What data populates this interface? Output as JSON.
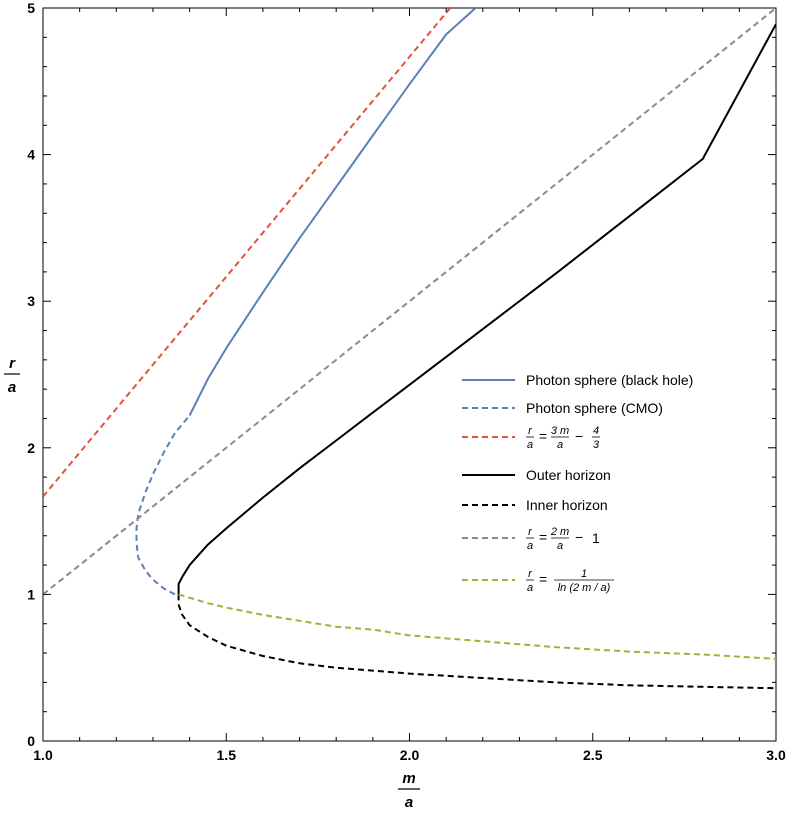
{
  "chart_data": {
    "type": "line",
    "title": "",
    "xlabel": {
      "num": "m",
      "den": "a"
    },
    "ylabel": {
      "num": "r",
      "den": "a"
    },
    "xlim": [
      1.0,
      3.0
    ],
    "ylim": [
      0,
      5
    ],
    "x_ticks": [
      {
        "value": 1.0,
        "label": "1.0"
      },
      {
        "value": 1.5,
        "label": "1.5"
      },
      {
        "value": 2.0,
        "label": "2.0"
      },
      {
        "value": 2.5,
        "label": "2.5"
      },
      {
        "value": 3.0,
        "label": "3.0"
      }
    ],
    "y_ticks": [
      {
        "value": 0,
        "label": "0"
      },
      {
        "value": 1,
        "label": "1"
      },
      {
        "value": 2,
        "label": "2"
      },
      {
        "value": 3,
        "label": "3"
      },
      {
        "value": 4,
        "label": "4"
      },
      {
        "value": 5,
        "label": "5"
      }
    ],
    "grid": false,
    "legend_position": "right",
    "series": [
      {
        "name": "Photon sphere (black hole)",
        "color": "#5b7fb8",
        "dashed": false,
        "points": [
          [
            1.4,
            2.22
          ],
          [
            1.45,
            2.47
          ],
          [
            1.5,
            2.68
          ],
          [
            1.6,
            3.06
          ],
          [
            1.7,
            3.43
          ],
          [
            1.8,
            3.78
          ],
          [
            1.9,
            4.13
          ],
          [
            2.0,
            4.48
          ],
          [
            2.1,
            4.82
          ],
          [
            2.18,
            5.0
          ]
        ]
      },
      {
        "name": "Photon sphere (CMO)",
        "color": "#5b7fb8",
        "dashed": true,
        "points": [
          [
            1.36,
            1.0
          ],
          [
            1.33,
            1.04
          ],
          [
            1.3,
            1.1
          ],
          [
            1.28,
            1.16
          ],
          [
            1.26,
            1.25
          ],
          [
            1.255,
            1.35
          ],
          [
            1.255,
            1.45
          ],
          [
            1.26,
            1.55
          ],
          [
            1.28,
            1.7
          ],
          [
            1.3,
            1.82
          ],
          [
            1.33,
            1.97
          ],
          [
            1.36,
            2.1
          ],
          [
            1.4,
            2.22
          ]
        ]
      },
      {
        "name": "r/a = 3m/a − 4/3",
        "legend": {
          "lhs_num": "r",
          "lhs_den": "a",
          "rhs_num": "3 m",
          "rhs_den": "a",
          "op": "−",
          "c_num": "4",
          "c_den": "3"
        },
        "color": "#e2543a",
        "dashed": true,
        "points": [
          [
            1.0,
            1.667
          ],
          [
            2.111,
            5.0
          ]
        ]
      },
      {
        "name": "Outer horizon",
        "color": "#000000",
        "dashed": false,
        "points": [
          [
            1.37,
            1.0
          ],
          [
            1.37,
            1.07
          ],
          [
            1.38,
            1.12
          ],
          [
            1.4,
            1.2
          ],
          [
            1.45,
            1.34
          ],
          [
            1.5,
            1.45
          ],
          [
            1.6,
            1.66
          ],
          [
            1.7,
            1.86
          ],
          [
            1.8,
            2.05
          ],
          [
            1.9,
            2.24
          ],
          [
            2.0,
            2.43
          ],
          [
            2.2,
            2.81
          ],
          [
            2.4,
            3.19
          ],
          [
            2.6,
            3.58
          ],
          [
            2.8,
            3.97
          ],
          [
            3.0,
            4.89
          ]
        ]
      },
      {
        "name": "Inner horizon",
        "color": "#000000",
        "dashed": true,
        "points": [
          [
            1.37,
            1.0
          ],
          [
            1.37,
            0.93
          ],
          [
            1.38,
            0.86
          ],
          [
            1.4,
            0.79
          ],
          [
            1.45,
            0.71
          ],
          [
            1.5,
            0.65
          ],
          [
            1.6,
            0.58
          ],
          [
            1.7,
            0.53
          ],
          [
            1.8,
            0.5
          ],
          [
            2.0,
            0.46
          ],
          [
            2.2,
            0.43
          ],
          [
            2.4,
            0.4
          ],
          [
            2.6,
            0.38
          ],
          [
            2.8,
            0.37
          ],
          [
            3.0,
            0.36
          ]
        ]
      },
      {
        "name": "r/a = 2m/a − 1",
        "legend": {
          "lhs_num": "r",
          "lhs_den": "a",
          "rhs_num": "2 m",
          "rhs_den": "a",
          "op": "−",
          "c": "1"
        },
        "color": "#8a8a8a",
        "dashed": true,
        "points": [
          [
            1.0,
            1.0
          ],
          [
            3.0,
            5.0
          ]
        ]
      },
      {
        "name": "r/a = 1/ln(2m/a)",
        "legend": {
          "lhs_num": "r",
          "lhs_den": "a",
          "rhs_num": "1",
          "rhs_den": "ln (2 m / a)"
        },
        "color": "#9bb53b",
        "dashed": true,
        "points": [
          [
            1.37,
            1.0
          ],
          [
            1.45,
            0.94
          ],
          [
            1.5,
            0.91
          ],
          [
            1.6,
            0.86
          ],
          [
            1.7,
            0.82
          ],
          [
            1.8,
            0.78
          ],
          [
            1.9,
            0.76
          ],
          [
            2.0,
            0.72
          ],
          [
            2.2,
            0.68
          ],
          [
            2.4,
            0.64
          ],
          [
            2.6,
            0.61
          ],
          [
            2.8,
            0.59
          ],
          [
            3.0,
            0.56
          ]
        ]
      }
    ]
  }
}
